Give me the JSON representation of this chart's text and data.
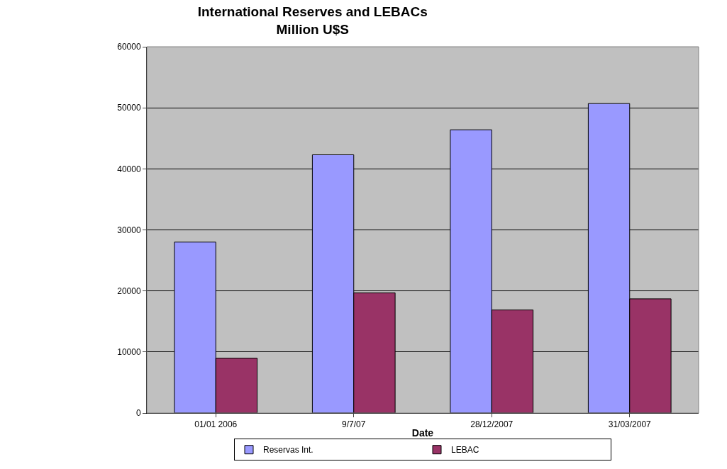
{
  "chart_data": {
    "type": "bar",
    "title": "International Reserves and LEBACs",
    "subtitle": "Million U$S",
    "xlabel": "Date",
    "categories": [
      "01/01 2006",
      "9/7/07",
      "28/12/2007",
      "31/03/2007"
    ],
    "series": [
      {
        "name": "Reservas Int.",
        "color": "#9999ff",
        "values": [
          28000,
          42300,
          46400,
          50700
        ]
      },
      {
        "name": "LEBAC",
        "color": "#993366",
        "values": [
          9000,
          19700,
          16900,
          18700
        ]
      }
    ],
    "ylim": [
      0,
      60000
    ],
    "yticks": [
      0,
      10000,
      20000,
      30000,
      40000,
      50000,
      60000
    ],
    "grid": "y",
    "legend": "bottom"
  }
}
